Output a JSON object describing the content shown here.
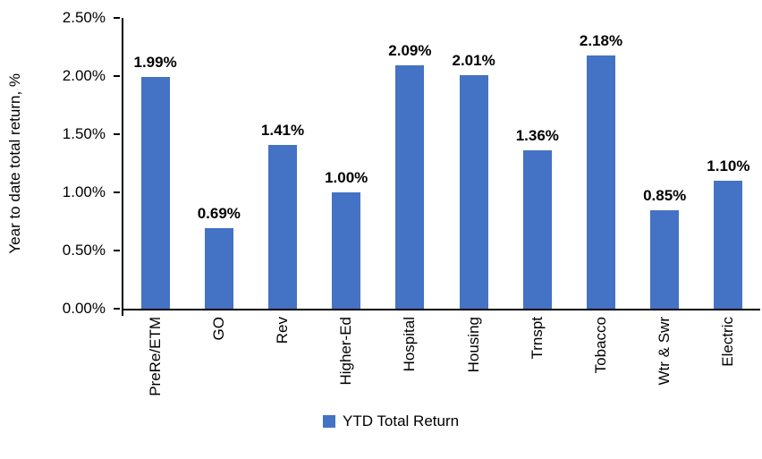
{
  "chart_data": {
    "type": "bar",
    "title": "",
    "xlabel": "",
    "ylabel": "Year to date total return, %",
    "categories": [
      "PreRe/ETM",
      "GO",
      "Rev",
      "Higher-Ed",
      "Hospital",
      "Housing",
      "Trnspt",
      "Tobacco",
      "Wtr & Swr",
      "Electric"
    ],
    "values": [
      1.99,
      0.69,
      1.41,
      1.0,
      2.09,
      2.01,
      1.36,
      2.18,
      0.85,
      1.1
    ],
    "data_labels": [
      "1.99%",
      "0.69%",
      "1.41%",
      "1.00%",
      "2.09%",
      "2.01%",
      "1.36%",
      "2.18%",
      "0.85%",
      "1.10%"
    ],
    "ylim": [
      0,
      2.5
    ],
    "y_ticks": [
      "0.00%",
      "0.50%",
      "1.00%",
      "1.50%",
      "2.00%",
      "2.50%"
    ],
    "y_tick_values": [
      0,
      0.5,
      1.0,
      1.5,
      2.0,
      2.5
    ],
    "grid": false,
    "bar_color": "#4472C4",
    "legend": {
      "position": "bottom",
      "entries": [
        {
          "label": "YTD Total Return",
          "color": "#4472C4"
        }
      ]
    }
  },
  "colors": {
    "bar": "#4472C4",
    "axis": "#000000",
    "text": "#000000",
    "background": "#FFFFFF"
  }
}
